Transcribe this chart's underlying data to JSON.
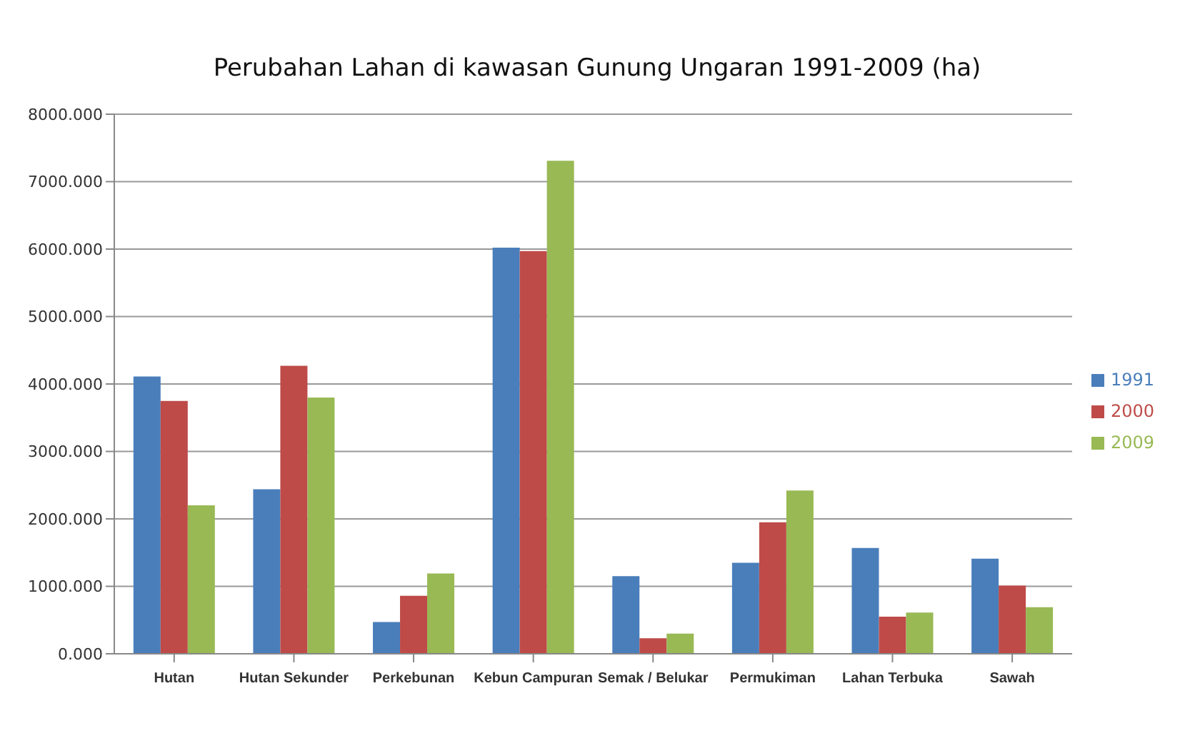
{
  "chart_data": {
    "type": "bar",
    "title": "Perubahan Lahan di kawasan Gunung Ungaran 1991-2009 (ha)",
    "categories": [
      "Hutan",
      "Hutan Sekunder",
      "Perkebunan",
      "Kebun Campuran",
      "Semak / Belukar",
      "Permukiman",
      "Lahan Terbuka",
      "Sawah"
    ],
    "series": [
      {
        "name": "1991",
        "color": "#4a7ebb",
        "values": [
          4110,
          2440,
          470,
          6020,
          1150,
          1350,
          1570,
          1410
        ]
      },
      {
        "name": "2000",
        "color": "#be4b48",
        "values": [
          3750,
          4270,
          860,
          5970,
          230,
          1950,
          550,
          1010
        ]
      },
      {
        "name": "2009",
        "color": "#98b954",
        "values": [
          2200,
          3800,
          1190,
          7310,
          300,
          2420,
          610,
          690
        ]
      }
    ],
    "ylim": [
      0,
      8000
    ],
    "yticks": [
      {
        "value": 0,
        "label": "0.000"
      },
      {
        "value": 1000,
        "label": "1000.000"
      },
      {
        "value": 2000,
        "label": "2000.000"
      },
      {
        "value": 3000,
        "label": "3000.000"
      },
      {
        "value": 4000,
        "label": "4000.000"
      },
      {
        "value": 5000,
        "label": "5000.000"
      },
      {
        "value": 6000,
        "label": "6000.000"
      },
      {
        "value": 7000,
        "label": "7000.000"
      },
      {
        "value": 8000,
        "label": "8000.000"
      }
    ],
    "grid": "y",
    "legend": "right"
  }
}
